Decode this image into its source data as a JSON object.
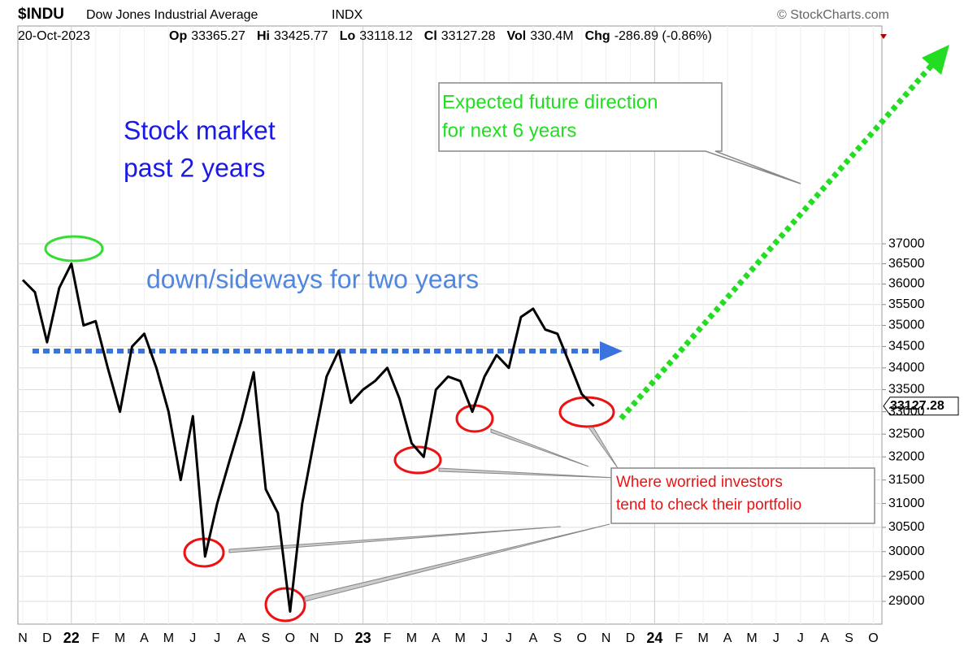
{
  "header": {
    "symbol": "$INDU",
    "name": "Dow Jones Industrial Average",
    "exchange": "INDX",
    "source": "© StockCharts.com",
    "date": "20-Oct-2023",
    "stats": [
      {
        "label": "Op",
        "value": "33365.27"
      },
      {
        "label": "Hi",
        "value": "33425.77"
      },
      {
        "label": "Lo",
        "value": "33118.12"
      },
      {
        "label": "Cl",
        "value": "33127.28"
      },
      {
        "label": "Vol",
        "value": "330.4M"
      },
      {
        "label": "Chg",
        "value": "-286.89 (-0.86%)"
      }
    ]
  },
  "chart_data": {
    "type": "line",
    "categories": [
      "N",
      null,
      "D",
      null,
      "22",
      null,
      "F",
      null,
      "M",
      null,
      "A",
      null,
      "M",
      null,
      "J",
      null,
      "J",
      null,
      "A",
      null,
      "S",
      null,
      "O",
      null,
      "N",
      null,
      "D",
      null,
      "23",
      null,
      "F",
      null,
      "M",
      null,
      "A",
      null,
      "M",
      null,
      "J",
      null,
      "J",
      null,
      "A",
      null,
      "S",
      null,
      "O",
      null,
      "N",
      null,
      "D",
      null,
      "24",
      null,
      "F",
      null,
      "M",
      null,
      "A",
      null,
      "M",
      null,
      "J",
      null,
      "J",
      null,
      "A",
      null,
      "S",
      null,
      "O",
      null
    ],
    "series": [
      {
        "name": "$INDU",
        "color": "#000000",
        "values": [
          36100,
          35800,
          34600,
          35900,
          36500,
          35000,
          35100,
          34000,
          33000,
          34500,
          34800,
          34000,
          33000,
          31500,
          32900,
          29900,
          31000,
          31900,
          32800,
          33900,
          31300,
          30800,
          28800,
          31000,
          32400,
          33800,
          34400,
          33200,
          33500,
          33700,
          34000,
          33300,
          32300,
          32000,
          33500,
          33800,
          33700,
          33000,
          33800,
          34300,
          34000,
          35200,
          35400,
          34900,
          34800,
          34100,
          33400,
          33127,
          null,
          null,
          null,
          null,
          null,
          null,
          null,
          null,
          null,
          null,
          null,
          null,
          null,
          null,
          null,
          null,
          null,
          null,
          null,
          null,
          null,
          null,
          null,
          null
        ]
      }
    ],
    "last_label": "33127.28",
    "log_scale": true,
    "ylim": [
      28554,
      42920
    ],
    "yticks": [
      29000,
      29500,
      30000,
      30500,
      31000,
      31500,
      32000,
      32500,
      33000,
      33500,
      34000,
      34500,
      35000,
      35500,
      36000,
      36500,
      37000
    ],
    "grid": true,
    "annotations": {
      "past": [
        "Stock market",
        "past 2 years"
      ],
      "sideways": "down/sideways for two years",
      "future": [
        "Expected future direction",
        "for next 6 years"
      ],
      "worried": [
        "Where worried investors",
        "tend to check their portfolio"
      ]
    }
  }
}
